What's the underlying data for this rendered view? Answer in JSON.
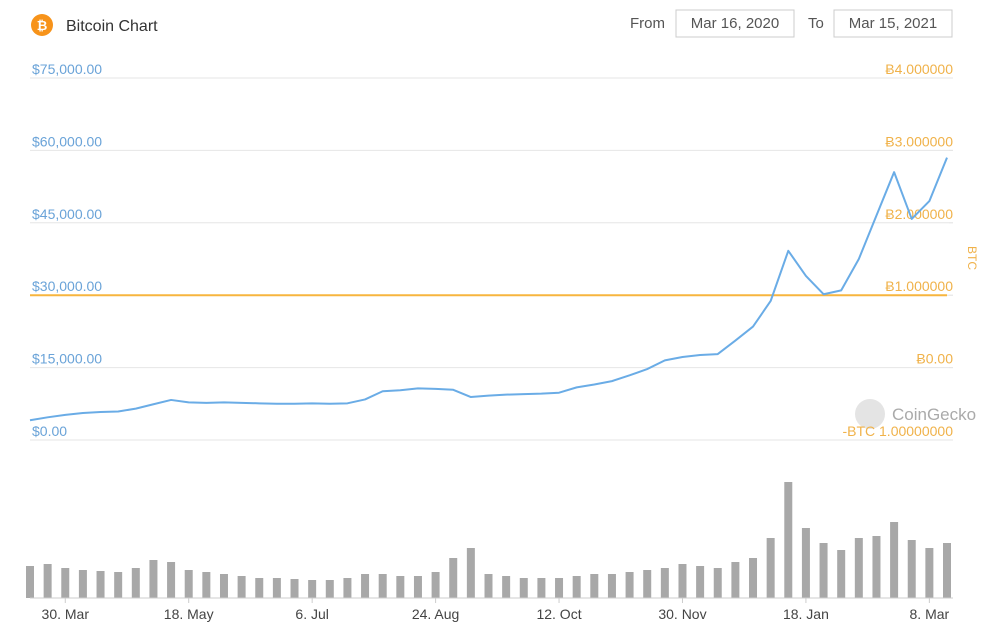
{
  "header": {
    "title": "Bitcoin Chart",
    "from_label": "From",
    "from_date": "Mar 16, 2020",
    "to_label": "To",
    "to_date": "Mar 15, 2021"
  },
  "watermark": "CoinGecko",
  "chart_data": {
    "type": "line",
    "y2_label": "BTC",
    "categories": [
      null,
      null,
      "30. Mar",
      null,
      null,
      null,
      null,
      null,
      null,
      "18. May",
      null,
      null,
      null,
      null,
      null,
      null,
      "6. Jul",
      null,
      null,
      null,
      null,
      null,
      null,
      "24. Aug",
      null,
      null,
      null,
      null,
      null,
      null,
      "12. Oct",
      null,
      null,
      null,
      null,
      null,
      null,
      "30. Nov",
      null,
      null,
      null,
      null,
      null,
      null,
      "18. Jan",
      null,
      null,
      null,
      null,
      null,
      null,
      "8. Mar",
      null
    ],
    "series": [
      {
        "color": "#6aace6",
        "values": [
          4100,
          4700,
          5200,
          5600,
          5800,
          5900,
          6500,
          7400,
          8300,
          7800,
          7700,
          7800,
          7700,
          7600,
          7500,
          7500,
          7600,
          7500,
          7600,
          8400,
          10100,
          10300,
          10700,
          10600,
          10400,
          8900,
          9200,
          9400,
          9500,
          9600,
          9800,
          10900,
          11500,
          12200,
          13400,
          14700,
          16500,
          17200,
          17600,
          17800,
          20600,
          23500,
          28800,
          39200,
          34000,
          30200,
          31000,
          37500,
          46500,
          55500,
          45800,
          49500,
          58500
        ]
      },
      {
        "color": "#f7b53f",
        "axis": "y2",
        "values": [
          1,
          1,
          1,
          1,
          1,
          1,
          1,
          1,
          1,
          1,
          1,
          1,
          1,
          1,
          1,
          1,
          1,
          1,
          1,
          1,
          1,
          1,
          1,
          1,
          1,
          1,
          1,
          1,
          1,
          1,
          1,
          1,
          1,
          1,
          1,
          1,
          1,
          1,
          1,
          1,
          1,
          1,
          1,
          1,
          1,
          1,
          1,
          1,
          1,
          1,
          1,
          1,
          1
        ]
      }
    ],
    "volume": {
      "color": "#a8a8a8",
      "values": [
        32000000000,
        34000000000,
        30000000000,
        28000000000,
        27000000000,
        26000000000,
        30000000000,
        38000000000,
        36000000000,
        28000000000,
        26000000000,
        24000000000,
        22000000000,
        20000000000,
        20000000000,
        19000000000,
        18000000000,
        18000000000,
        20000000000,
        24000000000,
        24000000000,
        22000000000,
        22000000000,
        26000000000,
        40000000000,
        50000000000,
        24000000000,
        22000000000,
        20000000000,
        20000000000,
        20000000000,
        22000000000,
        24000000000,
        24000000000,
        26000000000,
        28000000000,
        30000000000,
        34000000000,
        32000000000,
        30000000000,
        36000000000,
        40000000000,
        60000000000,
        116000000000,
        70000000000,
        55000000000,
        48000000000,
        60000000000,
        62000000000,
        76000000000,
        58000000000,
        50000000000,
        55000000000
      ]
    },
    "ylim": [
      0,
      75000
    ],
    "yticks": [
      {
        "value": 0,
        "label": "$0.00"
      },
      {
        "value": 15000,
        "label": "$15,000.00"
      },
      {
        "value": 30000,
        "label": "$30,000.00"
      },
      {
        "value": 45000,
        "label": "$45,000.00"
      },
      {
        "value": 60000,
        "label": "$60,000.00"
      },
      {
        "value": 75000,
        "label": "$75,000.00"
      }
    ],
    "y2lim": [
      -1,
      4
    ],
    "y2ticks": [
      {
        "value": -1,
        "label": "-BTC 1.00000000"
      },
      {
        "value": 0,
        "label": "Ƀ0.00"
      },
      {
        "value": 1,
        "label": "Ƀ1.000000"
      },
      {
        "value": 2,
        "label": "Ƀ2.000000"
      },
      {
        "value": 3,
        "label": "Ƀ3.000000"
      },
      {
        "value": 4,
        "label": "Ƀ4.000000"
      }
    ],
    "grid": true
  }
}
